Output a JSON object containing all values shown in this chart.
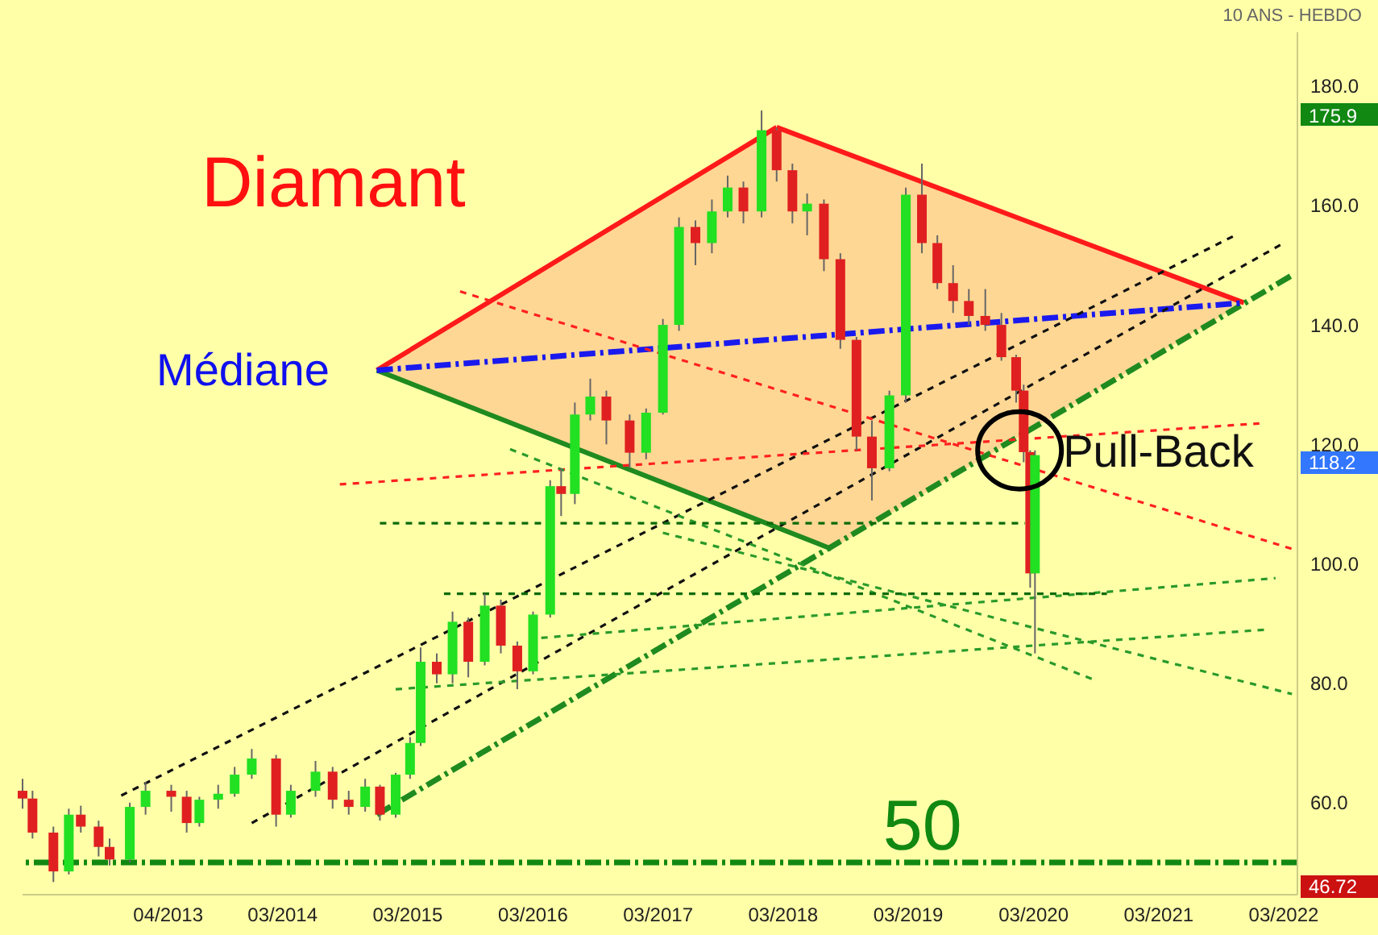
{
  "chart_data": {
    "type": "candlestick",
    "x": [
      "2012-02-01",
      "2012-03-01",
      "2012-05-01",
      "2012-06-15",
      "2012-07-20",
      "2012-09-10",
      "2012-10-12",
      "2012-12-10",
      "2013-01-25",
      "2013-04-10",
      "2013-05-25",
      "2013-07-01",
      "2013-08-25",
      "2013-10-12",
      "2013-12-01",
      "2014-02-10",
      "2014-03-25",
      "2014-06-05",
      "2014-07-25",
      "2014-09-10",
      "2014-10-28",
      "2014-12-10",
      "2015-01-25",
      "2015-03-08",
      "2015-04-08",
      "2015-05-25",
      "2015-07-10",
      "2015-08-25",
      "2015-10-12",
      "2015-11-28",
      "2016-01-15",
      "2016-03-01",
      "2016-04-20",
      "2016-05-22",
      "2016-07-01",
      "2016-08-15",
      "2016-10-01",
      "2016-12-08",
      "2017-01-25",
      "2017-03-15",
      "2017-05-01",
      "2017-06-18",
      "2017-08-05",
      "2017-09-20",
      "2017-11-05",
      "2017-12-28",
      "2018-02-10",
      "2018-03-28",
      "2018-05-10",
      "2018-06-28",
      "2018-08-15",
      "2018-10-01",
      "2018-11-15",
      "2019-01-05",
      "2019-02-22",
      "2019-04-10",
      "2019-05-25",
      "2019-07-10",
      "2019-08-25",
      "2019-10-12",
      "2019-11-28",
      "2020-01-10",
      "2020-02-01",
      "2020-02-20",
      "2020-03-05"
    ],
    "ohlc": [
      [
        62,
        64,
        59,
        60.7
      ],
      [
        60.7,
        62,
        54,
        55
      ],
      [
        55,
        56,
        46.72,
        48.5
      ],
      [
        48.5,
        59,
        48,
        58
      ],
      [
        58,
        59.5,
        55,
        56
      ],
      [
        56,
        57,
        51,
        52.6
      ],
      [
        52.6,
        54,
        49.5,
        50.5
      ],
      [
        50.5,
        60,
        50,
        59.3
      ],
      [
        59.3,
        63.5,
        58,
        62
      ],
      [
        62,
        63,
        58.5,
        61
      ],
      [
        61,
        62,
        55,
        56.6
      ],
      [
        56.6,
        61,
        56,
        60.5
      ],
      [
        60.5,
        63,
        59,
        61.5
      ],
      [
        61.5,
        66,
        61,
        64.7
      ],
      [
        64.7,
        69,
        64,
        67.4
      ],
      [
        67.4,
        68,
        56,
        58
      ],
      [
        58,
        63,
        57.5,
        62
      ],
      [
        62,
        67,
        61,
        65.2
      ],
      [
        65.2,
        66,
        59,
        60.5
      ],
      [
        60.5,
        62,
        58,
        59.3
      ],
      [
        59.3,
        64,
        58.5,
        62.7
      ],
      [
        62.7,
        63,
        57,
        58
      ],
      [
        58,
        65,
        57.5,
        64.7
      ],
      [
        64.7,
        71,
        64,
        70
      ],
      [
        70,
        86,
        69.5,
        83.6
      ],
      [
        83.6,
        85,
        80,
        81.5
      ],
      [
        81.5,
        92,
        80,
        90.3
      ],
      [
        90.3,
        91,
        81,
        83.6
      ],
      [
        83.6,
        95,
        83,
        93
      ],
      [
        93,
        94,
        85,
        86.3
      ],
      [
        86.3,
        87,
        79,
        82
      ],
      [
        82,
        92,
        81.5,
        91.5
      ],
      [
        91.5,
        114,
        91,
        113
      ],
      [
        113,
        116,
        108,
        111.7
      ],
      [
        111.7,
        127,
        110,
        125
      ],
      [
        125,
        131,
        124,
        128
      ],
      [
        128,
        129,
        120,
        124
      ],
      [
        124,
        125,
        116,
        118.6
      ],
      [
        118.6,
        126,
        117.5,
        125.3
      ],
      [
        125.3,
        141,
        125,
        140
      ],
      [
        140,
        158,
        139,
        156.4
      ],
      [
        156.4,
        157.5,
        150,
        153.7
      ],
      [
        153.7,
        161,
        152,
        159
      ],
      [
        159,
        165,
        158,
        163
      ],
      [
        163,
        164,
        157,
        159
      ],
      [
        159,
        175.9,
        158,
        172.6
      ],
      [
        172.6,
        173,
        164,
        165.9
      ],
      [
        165.9,
        167,
        157,
        159
      ],
      [
        159,
        162,
        155,
        160.3
      ],
      [
        160.3,
        161,
        149,
        151
      ],
      [
        151,
        152,
        136,
        137.5
      ],
      [
        137.5,
        138,
        119,
        121.3
      ],
      [
        121.3,
        124,
        110.6,
        116
      ],
      [
        116,
        129,
        115.5,
        128.2
      ],
      [
        128.2,
        163,
        127,
        161.8
      ],
      [
        161.8,
        167,
        152,
        153.7
      ],
      [
        153.7,
        155,
        146,
        147
      ],
      [
        147,
        150,
        142,
        144
      ],
      [
        144,
        146,
        140,
        141.5
      ],
      [
        141.5,
        146,
        139,
        140
      ],
      [
        140,
        142,
        134,
        134.6
      ],
      [
        134.6,
        135,
        127,
        129
      ],
      [
        129,
        130,
        117,
        118.7
      ],
      [
        118.7,
        119,
        96,
        98.4
      ],
      [
        98.4,
        119,
        85,
        118.2
      ]
    ],
    "series": [
      {
        "type": "line",
        "color": "#ff1a1a",
        "line_style": "solid",
        "x": [
          "2014-12-01",
          "2018-02-10"
        ],
        "values": [
          132.4,
          173.1
        ]
      },
      {
        "type": "line",
        "color": "#ff1a1a",
        "line_style": "solid",
        "x": [
          "2018-02-10",
          "2021-11-05"
        ],
        "values": [
          173.1,
          143.7
        ]
      },
      {
        "type": "line",
        "color": "#1f8a1f",
        "line_style": "solid",
        "x": [
          "2014-12-01",
          "2018-07-20"
        ],
        "values": [
          132.4,
          102.5
        ]
      },
      {
        "type": "line",
        "color": "#1f8a1f",
        "line_style": "dashed",
        "x": [
          "2014-12-01",
          "2022-03-25"
        ],
        "values": [
          58,
          148.3
        ]
      },
      {
        "type": "line",
        "color": "#1a1aee",
        "line_style": "dashed",
        "x": [
          "2014-12-01",
          "2021-11-05"
        ],
        "values": [
          132.4,
          143.7
        ]
      },
      {
        "type": "line",
        "color": "#111111",
        "line_style": "dotted",
        "x": [
          "2012-11-15",
          "2021-10-10"
        ],
        "values": [
          61.2,
          155
        ]
      },
      {
        "type": "line",
        "color": "#111111",
        "line_style": "dotted",
        "x": [
          "2013-12-01",
          "2022-03-01"
        ],
        "values": [
          56.6,
          153.7
        ]
      },
      {
        "type": "line",
        "color": "#ff2020",
        "line_style": "dotted",
        "x": [
          "2015-08-01",
          "2022-03-25"
        ],
        "values": [
          145.6,
          102.5
        ]
      },
      {
        "type": "line",
        "color": "#ff2020",
        "line_style": "dotted",
        "x": [
          "2014-08-15",
          "2021-12-20"
        ],
        "values": [
          113.3,
          123.5
        ]
      },
      {
        "type": "line",
        "color": "#2a9a2a",
        "line_style": "dotted",
        "x": [
          "2015-12-25",
          "2020-09-01"
        ],
        "values": [
          119.2,
          80.4
        ]
      },
      {
        "type": "line",
        "color": "#2a9a2a",
        "line_style": "dotted",
        "x": [
          "2015-01-25",
          "2022-01-15"
        ],
        "values": [
          79,
          89
        ]
      },
      {
        "type": "line",
        "color": "#2a9a2a",
        "line_style": "dotted",
        "x": [
          "2016-03-25",
          "2022-02-05"
        ],
        "values": [
          87.6,
          97.6
        ]
      },
      {
        "type": "line",
        "color": "#2a9a2a",
        "line_style": "dotted",
        "x": [
          "2017-03-15",
          "2022-03-25"
        ],
        "values": [
          105.2,
          78.2
        ]
      },
      {
        "type": "line",
        "color": "#0a6a0a",
        "line_style": "dotted",
        "x": [
          "2014-12-10",
          "2020-02-05"
        ],
        "values": [
          106.8,
          106.8
        ]
      },
      {
        "type": "line",
        "color": "#0a6a0a",
        "line_style": "dotted",
        "x": [
          "2015-06-15",
          "2020-10-01"
        ],
        "values": [
          95,
          95
        ]
      }
    ],
    "ref_lines": [
      {
        "axis": "y",
        "value": 50,
        "label": "50",
        "color": "#118811",
        "line_style": "dashed"
      }
    ],
    "annotations": [
      "Diamant",
      "Médiane",
      "10 ANS - HEBDO",
      "175.9",
      "118.2",
      "46.72",
      {
        "text": "Pull-Back",
        "x": "2020-01-20",
        "y": 119
      }
    ],
    "xlim": [
      "2012-02-01",
      "2022-04-10"
    ],
    "xticks": [
      {
        "value": "2013-04-01",
        "label": "04/2013"
      },
      {
        "value": "2014-03-01",
        "label": "03/2014"
      },
      {
        "value": "2015-03-01",
        "label": "03/2015"
      },
      {
        "value": "2016-03-01",
        "label": "03/2016"
      },
      {
        "value": "2017-03-01",
        "label": "03/2017"
      },
      {
        "value": "2018-03-01",
        "label": "03/2018"
      },
      {
        "value": "2019-03-01",
        "label": "03/2019"
      },
      {
        "value": "2020-03-01",
        "label": "03/2020"
      },
      {
        "value": "2021-03-01",
        "label": "03/2021"
      },
      {
        "value": "2022-03-01",
        "label": "03/2022"
      }
    ],
    "ylim": [
      44.6,
      189
    ],
    "yticks": [
      {
        "value": 60,
        "label": "60.0"
      },
      {
        "value": 80,
        "label": "80.0"
      },
      {
        "value": 100,
        "label": "100.0"
      },
      {
        "value": 120,
        "label": "120.0"
      },
      {
        "value": 140,
        "label": "140.0"
      },
      {
        "value": 160,
        "label": "160.0"
      },
      {
        "value": 180,
        "label": "180.0"
      }
    ],
    "tick_labels": true
  }
}
